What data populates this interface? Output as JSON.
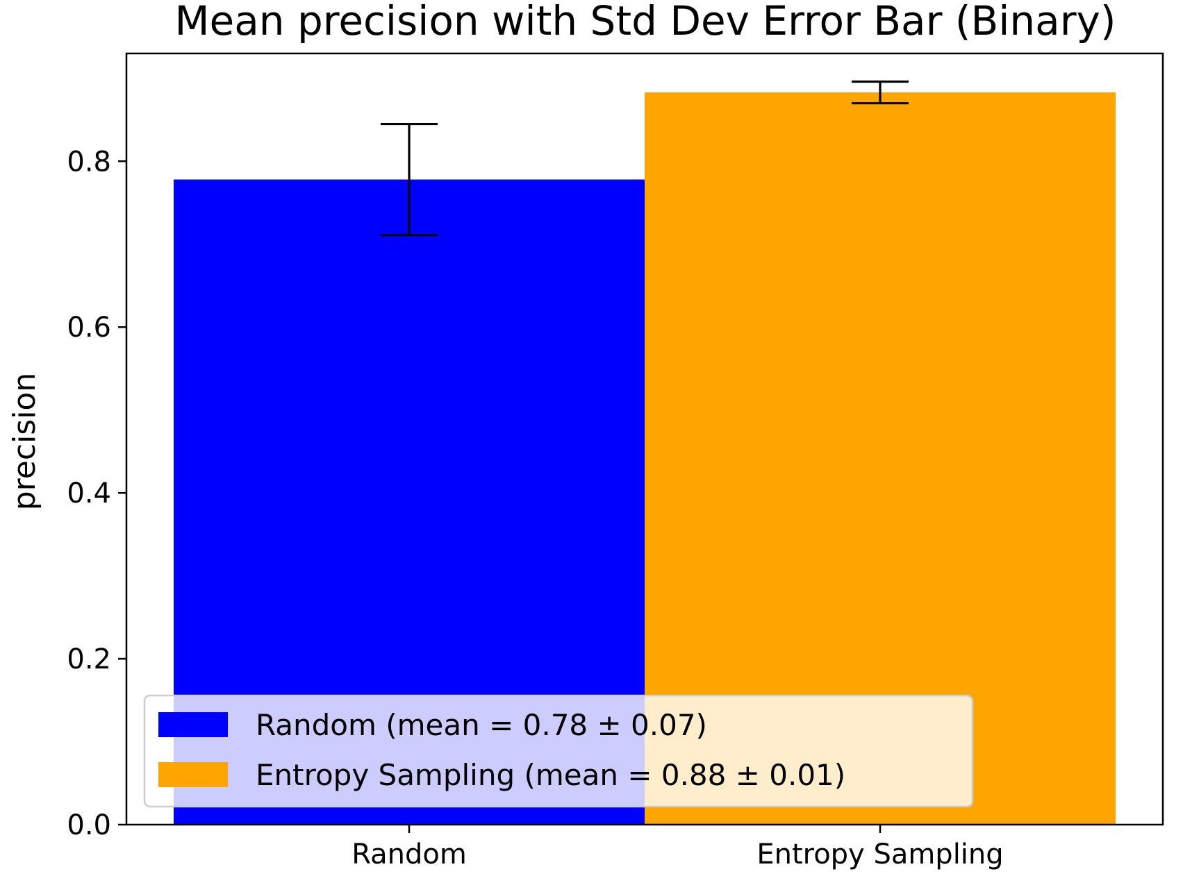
{
  "chart_data": {
    "type": "bar",
    "title": "Mean precision with Std Dev Error Bar (Binary)",
    "xlabel": "",
    "ylabel": "precision",
    "categories": [
      "Random",
      "Entropy Sampling"
    ],
    "values": [
      0.778,
      0.883
    ],
    "errors": [
      0.067,
      0.013
    ],
    "colors": [
      "#0000ff",
      "#ffa500"
    ],
    "ylim": [
      0.0,
      0.93
    ],
    "yticks": [
      0.0,
      0.2,
      0.4,
      0.6,
      0.8
    ],
    "ytick_labels": [
      "0.0",
      "0.2",
      "0.4",
      "0.6",
      "0.8"
    ],
    "grid": false,
    "legend_position": "lower-left",
    "legend": [
      {
        "label": "Random (mean = 0.78 ± 0.07)",
        "color": "#0000ff"
      },
      {
        "label": "Entropy Sampling (mean = 0.88 ± 0.01)",
        "color": "#ffa500"
      }
    ]
  }
}
